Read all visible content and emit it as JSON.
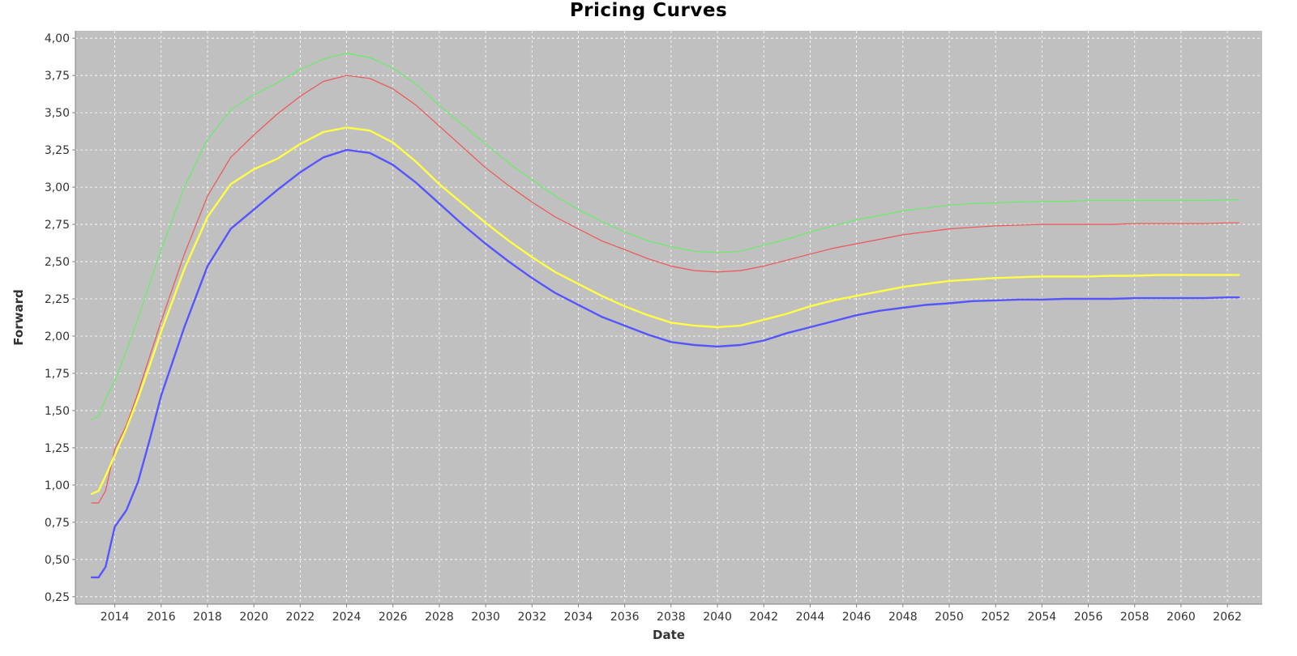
{
  "chart_data": {
    "type": "line",
    "title": "Pricing Curves",
    "xlabel": "Date",
    "ylabel": "Forward",
    "xlim": [
      2012.3,
      2063.5
    ],
    "ylim": [
      0.2,
      4.05
    ],
    "x_ticks": [
      "2014",
      "2016",
      "2018",
      "2020",
      "2022",
      "2024",
      "2026",
      "2028",
      "2030",
      "2032",
      "2034",
      "2036",
      "2038",
      "2040",
      "2042",
      "2044",
      "2046",
      "2048",
      "2050",
      "2052",
      "2054",
      "2056",
      "2058",
      "2060",
      "2062"
    ],
    "y_ticks": [
      "0,25",
      "0,50",
      "0,75",
      "1,00",
      "1,25",
      "1,50",
      "1,75",
      "2,00",
      "2,25",
      "2,50",
      "2,75",
      "3,00",
      "3,25",
      "3,50",
      "3,75",
      "4,00"
    ],
    "grid": true,
    "legend": "none",
    "background": "#c0c0c0",
    "gridline_color": "#ffffff",
    "x": [
      2013.0,
      2013.3,
      2013.6,
      2014.0,
      2014.5,
      2015.0,
      2015.5,
      2016.0,
      2017.0,
      2018.0,
      2019.0,
      2020.0,
      2021.0,
      2022.0,
      2023.0,
      2024.0,
      2025.0,
      2026.0,
      2027.0,
      2028.0,
      2029.0,
      2030.0,
      2031.0,
      2032.0,
      2033.0,
      2034.0,
      2035.0,
      2036.0,
      2037.0,
      2038.0,
      2039.0,
      2040.0,
      2041.0,
      2042.0,
      2043.0,
      2044.0,
      2045.0,
      2046.0,
      2047.0,
      2048.0,
      2049.0,
      2050.0,
      2051.0,
      2052.0,
      2053.0,
      2054.0,
      2055.0,
      2056.0,
      2057.0,
      2058.0,
      2059.0,
      2060.0,
      2061.0,
      2062.0,
      2062.5
    ],
    "series": [
      {
        "color": "#66ee66",
        "values": [
          1.44,
          1.46,
          1.58,
          1.7,
          1.9,
          2.12,
          2.35,
          2.58,
          3.0,
          3.32,
          3.52,
          3.62,
          3.7,
          3.79,
          3.86,
          3.9,
          3.87,
          3.8,
          3.69,
          3.55,
          3.42,
          3.29,
          3.16,
          3.05,
          2.94,
          2.85,
          2.77,
          2.7,
          2.64,
          2.6,
          2.57,
          2.56,
          2.57,
          2.61,
          2.65,
          2.7,
          2.74,
          2.78,
          2.81,
          2.84,
          2.86,
          2.88,
          2.89,
          2.895,
          2.9,
          2.905,
          2.905,
          2.91,
          2.91,
          2.91,
          2.91,
          2.91,
          2.91,
          2.915,
          2.915
        ]
      },
      {
        "color": "#ee5555",
        "values": [
          0.88,
          0.88,
          0.96,
          1.24,
          1.4,
          1.62,
          1.86,
          2.1,
          2.55,
          2.94,
          3.2,
          3.35,
          3.49,
          3.61,
          3.71,
          3.75,
          3.73,
          3.66,
          3.55,
          3.41,
          3.27,
          3.13,
          3.01,
          2.9,
          2.8,
          2.72,
          2.64,
          2.58,
          2.52,
          2.47,
          2.44,
          2.43,
          2.44,
          2.47,
          2.51,
          2.55,
          2.59,
          2.62,
          2.65,
          2.68,
          2.7,
          2.72,
          2.73,
          2.74,
          2.745,
          2.75,
          2.75,
          2.75,
          2.75,
          2.755,
          2.755,
          2.755,
          2.755,
          2.76,
          2.76
        ]
      },
      {
        "color": "#ffff44",
        "values": [
          0.94,
          0.96,
          1.06,
          1.2,
          1.38,
          1.58,
          1.8,
          2.03,
          2.45,
          2.8,
          3.02,
          3.12,
          3.19,
          3.29,
          3.37,
          3.4,
          3.38,
          3.3,
          3.17,
          3.02,
          2.89,
          2.76,
          2.64,
          2.53,
          2.43,
          2.35,
          2.27,
          2.2,
          2.14,
          2.09,
          2.07,
          2.06,
          2.07,
          2.11,
          2.15,
          2.2,
          2.24,
          2.27,
          2.3,
          2.33,
          2.35,
          2.37,
          2.38,
          2.39,
          2.395,
          2.4,
          2.4,
          2.4,
          2.405,
          2.405,
          2.41,
          2.41,
          2.41,
          2.41,
          2.41
        ]
      },
      {
        "color": "#5555ff",
        "values": [
          0.38,
          0.38,
          0.45,
          0.72,
          0.83,
          1.02,
          1.3,
          1.6,
          2.06,
          2.47,
          2.72,
          2.85,
          2.98,
          3.1,
          3.2,
          3.25,
          3.23,
          3.15,
          3.03,
          2.89,
          2.75,
          2.62,
          2.5,
          2.39,
          2.29,
          2.21,
          2.13,
          2.07,
          2.01,
          1.96,
          1.94,
          1.93,
          1.94,
          1.97,
          2.02,
          2.06,
          2.1,
          2.14,
          2.17,
          2.19,
          2.21,
          2.22,
          2.235,
          2.24,
          2.245,
          2.245,
          2.25,
          2.25,
          2.25,
          2.255,
          2.255,
          2.255,
          2.255,
          2.26,
          2.26
        ]
      }
    ]
  }
}
